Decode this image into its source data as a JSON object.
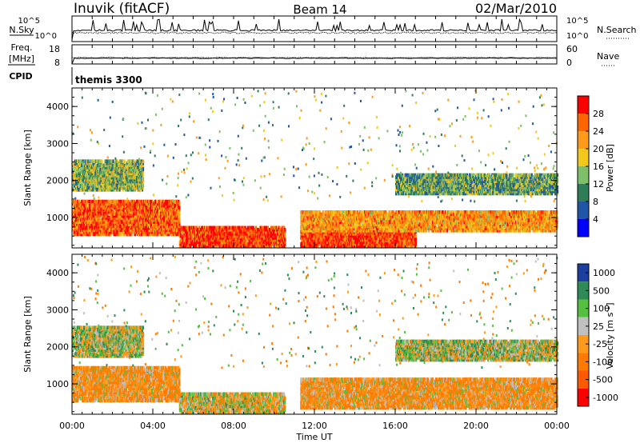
{
  "header": {
    "station": "Inuvik (fitACF)",
    "beam": "Beam 14",
    "date": "02/Mar/2010"
  },
  "left_labels": {
    "nsky": "N.Sky",
    "freq": "Freq.",
    "freq_unit": "[MHz]",
    "cpid": "CPID",
    "cpid_value": "themis 3300"
  },
  "right_labels": {
    "nsearch": "N.Search",
    "nave": "Nave"
  },
  "noise_axis": {
    "left_top": "10^5",
    "left_bottom": "10^0",
    "right_top": "10^5",
    "right_bottom": "10^0"
  },
  "freq_axis": {
    "left_top": "18",
    "left_bottom": "8",
    "right_top": "60",
    "right_bottom": "0"
  },
  "xaxis": {
    "label": "Time UT",
    "ticks": [
      "00:00",
      "04:00",
      "08:00",
      "12:00",
      "16:00",
      "20:00",
      "00:00"
    ]
  },
  "yaxis": {
    "label": "Slant Range [km]",
    "ticks": [
      "1000",
      "2000",
      "3000",
      "4000"
    ]
  },
  "power_scale": {
    "label": "Power [dB]",
    "ticks": [
      "4",
      "8",
      "12",
      "16",
      "20",
      "24",
      "28"
    ],
    "colors": [
      "#0000ff",
      "#1f56a8",
      "#2e7d57",
      "#7fbf6a",
      "#f2c81c",
      "#ff9a1a",
      "#ff6600",
      "#ff0000"
    ]
  },
  "velocity_scale": {
    "label": "Velocity [m s^-1]",
    "ticks": [
      "1000",
      "500",
      "100",
      "25",
      "-25",
      "-100",
      "-500",
      "-1000"
    ],
    "colors": [
      "#1a3fa0",
      "#2e8b57",
      "#55c040",
      "#c0c0c0",
      "#ff9a1a",
      "#ff7a00",
      "#ff5a00",
      "#ff0000"
    ]
  },
  "chart_data": [
    {
      "type": "heatmap",
      "title": "Power",
      "xlabel": "Time UT",
      "ylabel": "Slant Range [km]",
      "xlim": [
        0,
        24
      ],
      "ylim": [
        180,
        4500
      ],
      "colorbar": {
        "label": "Power [dB]",
        "range": [
          0,
          30
        ]
      },
      "regions": [
        {
          "t": [
            0,
            5.3
          ],
          "r": [
            500,
            1400
          ],
          "value": 26
        },
        {
          "t": [
            5.3,
            10.5
          ],
          "r": [
            180,
            700
          ],
          "value": 28
        },
        {
          "t": [
            11.3,
            17.0
          ],
          "r": [
            180,
            700
          ],
          "value": 28
        },
        {
          "t": [
            11.3,
            24.0
          ],
          "r": [
            600,
            1100
          ],
          "value": 22
        },
        {
          "t": [
            0,
            3.5
          ],
          "r": [
            1700,
            2500
          ],
          "value": 14
        },
        {
          "t": [
            16.0,
            24.0
          ],
          "r": [
            1600,
            2100
          ],
          "value": 12
        }
      ]
    },
    {
      "type": "heatmap",
      "title": "Velocity",
      "xlabel": "Time UT",
      "ylabel": "Slant Range [km]",
      "xlim": [
        0,
        24
      ],
      "ylim": [
        180,
        4500
      ],
      "colorbar": {
        "label": "Velocity [m s^-1]",
        "range": [
          -1000,
          1000
        ]
      },
      "regions": [
        {
          "t": [
            0,
            5.3
          ],
          "r": [
            500,
            1400
          ],
          "value": -100
        },
        {
          "t": [
            5.3,
            10.5
          ],
          "r": [
            180,
            700
          ],
          "value": -25
        },
        {
          "t": [
            11.3,
            24.0
          ],
          "r": [
            300,
            1100
          ],
          "value": -100
        },
        {
          "t": [
            0,
            3.5
          ],
          "r": [
            1700,
            2500
          ],
          "value": 25
        },
        {
          "t": [
            16.0,
            24.0
          ],
          "r": [
            1600,
            2100
          ],
          "value": 25
        }
      ]
    },
    {
      "type": "line",
      "title": "N.Sky / N.Search",
      "x_range": [
        0,
        24
      ],
      "y_scale": "log",
      "ylim": [
        1,
        100000
      ]
    },
    {
      "type": "line",
      "title": "Freq. / Nave",
      "x_range": [
        0,
        24
      ],
      "ylim": [
        8,
        18
      ],
      "freq_mhz_approx": 11,
      "nave_approx": 30
    }
  ]
}
